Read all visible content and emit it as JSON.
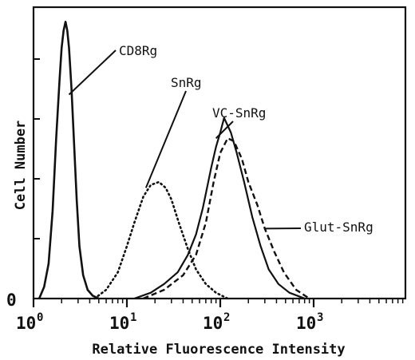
{
  "chart_data": {
    "type": "line",
    "title": "",
    "xlabel": "Relative Fluorescence Intensity",
    "ylabel": "Cell Number",
    "x_scale": "log",
    "xlim": [
      1,
      10000
    ],
    "ylim": [
      0,
      100
    ],
    "y_origin_label": "0",
    "x_ticks": [
      {
        "value": 1,
        "base": "10",
        "exp": "0"
      },
      {
        "value": 10,
        "base": "10",
        "exp": "1"
      },
      {
        "value": 100,
        "base": "10",
        "exp": "2"
      },
      {
        "value": 1000,
        "base": "10",
        "exp": "3"
      }
    ],
    "series": [
      {
        "name": "CD8Rg",
        "style": "solid",
        "x": [
          1.15,
          1.3,
          1.45,
          1.6,
          1.75,
          1.9,
          2.0,
          2.1,
          2.2,
          2.3,
          2.4,
          2.55,
          2.7,
          2.9,
          3.1,
          3.4,
          3.8,
          4.3,
          5.0
        ],
        "y": [
          0,
          4,
          12,
          30,
          55,
          75,
          86,
          92,
          95,
          92,
          86,
          72,
          55,
          34,
          18,
          8,
          3,
          1,
          0
        ]
      },
      {
        "name": "SnRg",
        "style": "dotted",
        "x": [
          4.5,
          6,
          8,
          10,
          12,
          15,
          18,
          22,
          26,
          30,
          36,
          45,
          55,
          70,
          90,
          120
        ],
        "y": [
          0,
          3,
          9,
          18,
          26,
          35,
          39,
          40,
          38,
          34,
          26,
          17,
          10,
          5,
          2,
          0
        ]
      },
      {
        "name": "VC-SnRg",
        "style": "solid",
        "x": [
          12,
          18,
          25,
          35,
          45,
          55,
          65,
          80,
          90,
          100,
          110,
          130,
          150,
          180,
          220,
          270,
          330,
          420,
          550,
          800
        ],
        "y": [
          0,
          2,
          5,
          9,
          15,
          22,
          31,
          45,
          52,
          57,
          62,
          57,
          50,
          40,
          28,
          18,
          10,
          5,
          2,
          0
        ]
      },
      {
        "name": "Glut-SnRg",
        "style": "dashed",
        "x": [
          15,
          25,
          40,
          55,
          70,
          85,
          100,
          120,
          140,
          170,
          200,
          250,
          300,
          380,
          480,
          650,
          900
        ],
        "y": [
          0,
          3,
          8,
          15,
          26,
          40,
          50,
          55,
          54,
          48,
          40,
          32,
          24,
          16,
          9,
          3,
          0
        ]
      }
    ],
    "annotations": [
      {
        "text": "CD8Rg",
        "series": "CD8Rg"
      },
      {
        "text": "SnRg",
        "series": "SnRg"
      },
      {
        "text": "VC-SnRg",
        "series": "VC-SnRg"
      },
      {
        "text": "Glut-SnRg",
        "series": "Glut-SnRg"
      }
    ],
    "grid": false,
    "legend": "none"
  }
}
